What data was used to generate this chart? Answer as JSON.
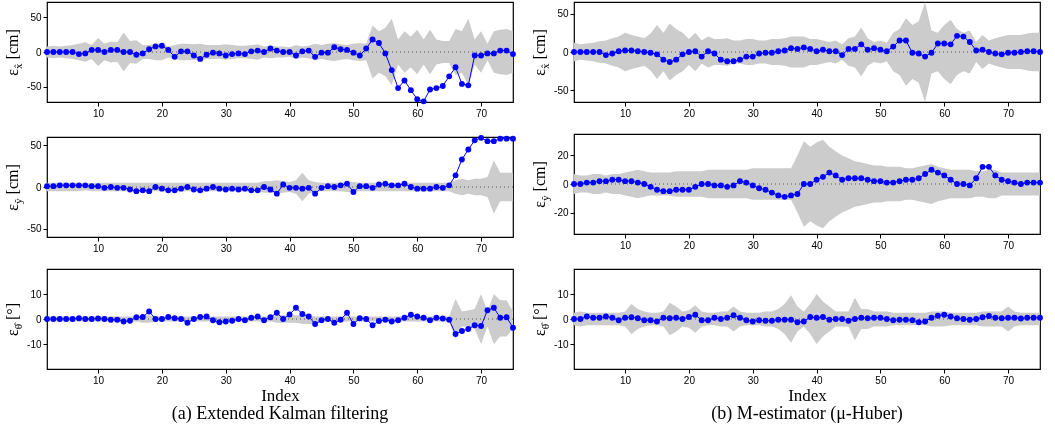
{
  "chart_data": [
    {
      "type": "line",
      "ylabel": "ε$_{x̂}$ [cm]",
      "x": [
        2,
        3,
        4,
        5,
        6,
        7,
        8,
        9,
        10,
        11,
        12,
        13,
        14,
        15,
        16,
        17,
        18,
        19,
        20,
        21,
        22,
        23,
        24,
        25,
        26,
        27,
        28,
        29,
        30,
        31,
        32,
        33,
        34,
        35,
        36,
        37,
        38,
        39,
        40,
        41,
        42,
        43,
        44,
        45,
        46,
        47,
        48,
        49,
        50,
        51,
        52,
        53,
        54,
        55,
        56,
        57,
        58,
        59,
        60,
        61,
        62,
        63,
        64,
        65,
        66,
        67,
        68,
        69,
        70,
        71,
        72,
        73,
        74,
        75
      ],
      "xlim": [
        2,
        75
      ],
      "xticks": [
        10,
        20,
        30,
        40,
        50,
        60,
        70
      ],
      "ylim": [
        -72,
        72
      ],
      "yticks": [
        -50,
        0,
        50
      ],
      "marker": "circle",
      "line_style": "solid",
      "ref_lines": [
        {
          "axis": "y",
          "value": 0,
          "color": "#555555",
          "line_style": "dotted"
        }
      ],
      "series": [
        {
          "color": "#0000ff",
          "values": [
            0,
            0,
            0,
            0,
            0,
            -3,
            -2,
            3,
            3,
            0,
            3,
            3,
            0,
            0,
            -4,
            -2,
            4,
            8,
            9,
            3,
            -7,
            1,
            1,
            -5,
            -10,
            -4,
            -1,
            -2,
            -5,
            -3,
            -2,
            -3,
            1,
            2,
            0,
            5,
            2,
            0,
            0,
            -5,
            1,
            2,
            -7,
            -1,
            -1,
            7,
            4,
            3,
            -1,
            -5,
            5,
            18,
            13,
            -2,
            -26,
            -52,
            -41,
            -55,
            -68,
            -71,
            -54,
            -52,
            -49,
            -35,
            -22,
            -46,
            -48,
            -5,
            -5,
            -2,
            -2,
            2,
            2,
            -3
          ],
          "upper": [
            8,
            9,
            8,
            9,
            10,
            12,
            14,
            10,
            20,
            12,
            15,
            14,
            28,
            16,
            17,
            10,
            10,
            12,
            12,
            8,
            10,
            12,
            12,
            11,
            12,
            10,
            10,
            10,
            11,
            10,
            9,
            9,
            10,
            11,
            8,
            9,
            8,
            8,
            7,
            10,
            8,
            9,
            12,
            10,
            12,
            13,
            11,
            10,
            12,
            13,
            12,
            38,
            30,
            35,
            48,
            18,
            30,
            22,
            32,
            18,
            32,
            18,
            16,
            16,
            33,
            30,
            48,
            18,
            30,
            12,
            30,
            32,
            33,
            30
          ],
          "lower": [
            -8,
            -9,
            -8,
            -9,
            -10,
            -12,
            -14,
            -10,
            -20,
            -12,
            -15,
            -14,
            -28,
            -16,
            -17,
            -10,
            -10,
            -12,
            -12,
            -8,
            -10,
            -12,
            -12,
            -11,
            -12,
            -10,
            -10,
            -10,
            -11,
            -10,
            -9,
            -9,
            -10,
            -11,
            -8,
            -9,
            -8,
            -8,
            -7,
            -10,
            -8,
            -9,
            -12,
            -10,
            -12,
            -13,
            -11,
            -10,
            -12,
            -13,
            -12,
            -38,
            -30,
            -35,
            -48,
            -18,
            -30,
            -22,
            -32,
            -18,
            -32,
            -18,
            -16,
            -16,
            -33,
            -30,
            -48,
            -18,
            -30,
            -12,
            -30,
            -32,
            -33,
            -30
          ]
        }
      ]
    },
    {
      "type": "line",
      "ylabel": "ε$_{ŷ}$ [cm]",
      "x": [
        2,
        3,
        4,
        5,
        6,
        7,
        8,
        9,
        10,
        11,
        12,
        13,
        14,
        15,
        16,
        17,
        18,
        19,
        20,
        21,
        22,
        23,
        24,
        25,
        26,
        27,
        28,
        29,
        30,
        31,
        32,
        33,
        34,
        35,
        36,
        37,
        38,
        39,
        40,
        41,
        42,
        43,
        44,
        45,
        46,
        47,
        48,
        49,
        50,
        51,
        52,
        53,
        54,
        55,
        56,
        57,
        58,
        59,
        60,
        61,
        62,
        63,
        64,
        65,
        66,
        67,
        68,
        69,
        70,
        71,
        72,
        73,
        74,
        75
      ],
      "xlim": [
        2,
        75
      ],
      "xticks": [
        10,
        20,
        30,
        40,
        50,
        60,
        70
      ],
      "ylim": [
        -60,
        60
      ],
      "yticks": [
        -50,
        0,
        50
      ],
      "marker": "circle",
      "line_style": "solid",
      "ref_lines": [
        {
          "axis": "y",
          "value": 0,
          "color": "#555555",
          "line_style": "dotted"
        }
      ],
      "series": [
        {
          "color": "#0000ff",
          "values": [
            1,
            1,
            2,
            2,
            2,
            2,
            2,
            1,
            1,
            -1,
            0,
            -1,
            -1,
            -3,
            -5,
            -4,
            -5,
            0,
            -2,
            -4,
            -4,
            -2,
            0,
            -3,
            -4,
            -2,
            0,
            -2,
            -3,
            -2,
            -3,
            -2,
            -4,
            -4,
            0,
            -3,
            -8,
            3,
            -1,
            -1,
            -2,
            -1,
            -8,
            -1,
            1,
            0,
            2,
            4,
            -6,
            1,
            1,
            -1,
            3,
            4,
            2,
            2,
            4,
            0,
            -2,
            -2,
            -2,
            0,
            -1,
            2,
            14,
            33,
            45,
            56,
            59,
            55,
            55,
            58,
            58,
            58
          ],
          "upper": [
            5,
            5,
            5,
            5,
            5,
            5,
            4,
            5,
            5,
            5,
            5,
            5,
            5,
            5,
            5,
            5,
            5,
            5,
            5,
            5,
            5,
            5,
            5,
            5,
            5,
            5,
            5,
            5,
            5,
            5,
            5,
            5,
            5,
            5,
            7,
            7,
            8,
            7,
            6,
            8,
            17,
            8,
            6,
            5,
            5,
            5,
            5,
            6,
            6,
            5,
            5,
            5,
            5,
            5,
            5,
            5,
            5,
            5,
            5,
            5,
            5,
            5,
            5,
            5,
            8,
            10,
            8,
            10,
            10,
            12,
            32,
            17,
            17,
            17
          ],
          "lower": [
            -5,
            -5,
            -5,
            -5,
            -5,
            -5,
            -4,
            -5,
            -5,
            -5,
            -5,
            -5,
            -5,
            -5,
            -5,
            -5,
            -5,
            -5,
            -5,
            -5,
            -5,
            -5,
            -5,
            -5,
            -5,
            -5,
            -5,
            -5,
            -5,
            -5,
            -5,
            -5,
            -5,
            -5,
            -7,
            -7,
            -8,
            -7,
            -6,
            -8,
            -17,
            -8,
            -6,
            -5,
            -5,
            -5,
            -5,
            -6,
            -6,
            -5,
            -5,
            -5,
            -5,
            -5,
            -5,
            -5,
            -5,
            -5,
            -5,
            -5,
            -5,
            -5,
            -5,
            -5,
            -8,
            -10,
            -8,
            -10,
            -10,
            -12,
            -32,
            -17,
            -17,
            -17
          ]
        }
      ]
    },
    {
      "type": "line",
      "ylabel": "ε$_{θ̂}$ [°]",
      "xlabel": "Index",
      "annotations": [
        "(a) Extended Kalman filtering"
      ],
      "x": [
        2,
        3,
        4,
        5,
        6,
        7,
        8,
        9,
        10,
        11,
        12,
        13,
        14,
        15,
        16,
        17,
        18,
        19,
        20,
        21,
        22,
        23,
        24,
        25,
        26,
        27,
        28,
        29,
        30,
        31,
        32,
        33,
        34,
        35,
        36,
        37,
        38,
        39,
        40,
        41,
        42,
        43,
        44,
        45,
        46,
        47,
        48,
        49,
        50,
        51,
        52,
        53,
        54,
        55,
        56,
        57,
        58,
        59,
        60,
        61,
        62,
        63,
        64,
        65,
        66,
        67,
        68,
        69,
        70,
        71,
        72,
        73,
        74,
        75
      ],
      "xlim": [
        2,
        75
      ],
      "xticks": [
        10,
        20,
        30,
        40,
        50,
        60,
        70
      ],
      "ylim": [
        -20,
        20
      ],
      "yticks": [
        -10,
        0,
        10
      ],
      "marker": "circle",
      "line_style": "solid",
      "ref_lines": [
        {
          "axis": "y",
          "value": 0,
          "color": "#555555",
          "line_style": "dotted"
        }
      ],
      "series": [
        {
          "color": "#0000ff",
          "values": [
            0,
            0,
            0,
            0,
            0,
            0.3,
            0,
            0,
            0.2,
            0,
            -0.3,
            -0.3,
            -1,
            -0.7,
            0.7,
            0.8,
            3,
            0,
            0,
            0.8,
            0.3,
            0,
            -1.5,
            0,
            0.8,
            1,
            -0.5,
            -1.3,
            -1,
            -0.7,
            0,
            -0.5,
            0.5,
            1,
            -0.5,
            0.7,
            2.5,
            0,
            1.8,
            4.5,
            2,
            1,
            -2,
            -0.5,
            0,
            -1.5,
            -0.3,
            2.5,
            -2,
            0.3,
            0,
            -2.5,
            -0.8,
            -0.3,
            -1,
            -0.5,
            0.5,
            1.7,
            1,
            0.5,
            -0.5,
            0.5,
            0.2,
            -0.3,
            -6,
            -4.8,
            -4,
            -2.5,
            -2.8,
            3.5,
            4.5,
            0.5,
            0.7,
            -3.5
          ],
          "upper": [
            1,
            1,
            1,
            1,
            1,
            1,
            1,
            1,
            1,
            1,
            1,
            1,
            1,
            1,
            1,
            1.5,
            1.5,
            1,
            1,
            1,
            1,
            1,
            1,
            1,
            1,
            1,
            1,
            1,
            1,
            1,
            1,
            1,
            1,
            1,
            1,
            1,
            1.5,
            1.5,
            1.5,
            1.5,
            1.5,
            1.5,
            1,
            1,
            1,
            1,
            1,
            1,
            1,
            1,
            1,
            1,
            1,
            1,
            1,
            1,
            1,
            1,
            1,
            1,
            1,
            1,
            1,
            1,
            8,
            3,
            3.5,
            4,
            10,
            3,
            10,
            7.5,
            7.5,
            3
          ],
          "lower": [
            -1,
            -1,
            -1,
            -1,
            -1,
            -1,
            -1,
            -1,
            -1,
            -1,
            -1,
            -1,
            -1,
            -1,
            -1,
            -1.5,
            -1.5,
            -1,
            -1,
            -1,
            -1,
            -1,
            -1,
            -1,
            -1,
            -1,
            -1,
            -1,
            -1,
            -1,
            -1,
            -1,
            -1,
            -1,
            -1,
            -1,
            -1.5,
            -1.5,
            -1.5,
            -1.5,
            -2,
            -2,
            -2,
            -1,
            -1,
            -1,
            -1,
            -1,
            -1,
            -1,
            -1,
            -1,
            -1,
            -1,
            -1,
            -1,
            -1,
            -1,
            -1,
            -1,
            -1,
            -1,
            -1,
            -1,
            -8,
            -3,
            -3,
            -4,
            -10,
            -3,
            -10,
            -7,
            -7,
            -4
          ]
        }
      ]
    },
    {
      "type": "line",
      "ylabel": "ε$_{x̂}$ [cm]",
      "x": [
        2,
        3,
        4,
        5,
        6,
        7,
        8,
        9,
        10,
        11,
        12,
        13,
        14,
        15,
        16,
        17,
        18,
        19,
        20,
        21,
        22,
        23,
        24,
        25,
        26,
        27,
        28,
        29,
        30,
        31,
        32,
        33,
        34,
        35,
        36,
        37,
        38,
        39,
        40,
        41,
        42,
        43,
        44,
        45,
        46,
        47,
        48,
        49,
        50,
        51,
        52,
        53,
        54,
        55,
        56,
        57,
        58,
        59,
        60,
        61,
        62,
        63,
        64,
        65,
        66,
        67,
        68,
        69,
        70,
        71,
        72,
        73,
        74,
        75
      ],
      "xlim": [
        2,
        75
      ],
      "xticks": [
        10,
        20,
        30,
        40,
        50,
        60,
        70
      ],
      "ylim": [
        -65,
        65
      ],
      "yticks": [
        -50,
        0,
        50
      ],
      "marker": "circle",
      "line_style": "solid",
      "ref_lines": [
        {
          "axis": "y",
          "value": 0,
          "color": "#555555",
          "line_style": "dotted"
        }
      ],
      "series": [
        {
          "color": "#0000ff",
          "values": [
            0,
            0,
            0,
            0,
            0,
            -4,
            -2,
            1,
            2,
            2,
            1,
            0,
            -1,
            -3,
            -10,
            -13,
            -10,
            -3,
            0,
            1,
            -6,
            1,
            -2,
            -10,
            -12,
            -12,
            -10,
            -6,
            -6,
            -2,
            -1,
            -1,
            1,
            2,
            5,
            4,
            6,
            4,
            1,
            3,
            1,
            1,
            -4,
            4,
            4,
            10,
            3,
            5,
            3,
            1,
            7,
            15,
            15,
            -1,
            -2,
            -6,
            -1,
            11,
            11,
            10,
            21,
            20,
            13,
            2,
            3,
            0,
            -2,
            -3,
            -1,
            -1,
            0,
            1,
            1,
            0
          ],
          "upper": [
            12,
            10,
            11,
            12,
            14,
            15,
            18,
            20,
            25,
            22,
            20,
            18,
            24,
            35,
            25,
            37,
            30,
            25,
            17,
            25,
            15,
            20,
            17,
            17,
            18,
            15,
            15,
            17,
            17,
            15,
            15,
            17,
            17,
            18,
            20,
            20,
            20,
            17,
            17,
            15,
            13,
            15,
            10,
            18,
            20,
            32,
            18,
            13,
            15,
            12,
            25,
            30,
            44,
            35,
            40,
            65,
            28,
            25,
            35,
            42,
            30,
            25,
            28,
            13,
            22,
            15,
            18,
            20,
            22,
            22,
            22,
            24,
            25,
            25
          ],
          "lower": [
            -12,
            -10,
            -11,
            -12,
            -14,
            -15,
            -18,
            -20,
            -25,
            -22,
            -20,
            -18,
            -24,
            -35,
            -25,
            -37,
            -30,
            -25,
            -17,
            -25,
            -15,
            -20,
            -17,
            -17,
            -18,
            -15,
            -15,
            -17,
            -17,
            -15,
            -15,
            -17,
            -17,
            -18,
            -20,
            -20,
            -20,
            -17,
            -17,
            -15,
            -13,
            -15,
            -10,
            -18,
            -20,
            -32,
            -18,
            -13,
            -15,
            -12,
            -25,
            -30,
            -44,
            -35,
            -40,
            -65,
            -28,
            -25,
            -35,
            -42,
            -30,
            -25,
            -28,
            -13,
            -22,
            -15,
            -18,
            -20,
            -22,
            -22,
            -22,
            -24,
            -25,
            -25
          ]
        }
      ]
    },
    {
      "type": "line",
      "ylabel": "ε$_{ŷ}$ [cm]",
      "x": [
        2,
        3,
        4,
        5,
        6,
        7,
        8,
        9,
        10,
        11,
        12,
        13,
        14,
        15,
        16,
        17,
        18,
        19,
        20,
        21,
        22,
        23,
        24,
        25,
        26,
        27,
        28,
        29,
        30,
        31,
        32,
        33,
        34,
        35,
        36,
        37,
        38,
        39,
        40,
        41,
        42,
        43,
        44,
        45,
        46,
        47,
        48,
        49,
        50,
        51,
        52,
        53,
        54,
        55,
        56,
        57,
        58,
        59,
        60,
        61,
        62,
        63,
        64,
        65,
        66,
        67,
        68,
        69,
        70,
        71,
        72,
        73,
        74,
        75
      ],
      "xlim": [
        2,
        75
      ],
      "xticks": [
        10,
        20,
        30,
        40,
        50,
        60,
        70
      ],
      "ylim": [
        -35,
        35
      ],
      "yticks": [
        -20,
        0,
        20
      ],
      "marker": "circle",
      "line_style": "solid",
      "ref_lines": [
        {
          "axis": "y",
          "value": 0,
          "color": "#555555",
          "line_style": "dotted"
        }
      ],
      "series": [
        {
          "color": "#0000ff",
          "values": [
            0,
            0,
            1,
            1,
            2,
            2,
            3,
            3,
            2,
            2,
            1,
            0,
            -2,
            -4,
            -5,
            -5,
            -4,
            -4,
            -4,
            -2,
            0,
            0,
            -1,
            -1,
            -2,
            -1,
            2,
            1,
            -1,
            -3,
            -4,
            -6,
            -8,
            -9,
            -8,
            -7,
            0,
            0,
            3,
            5,
            8,
            6,
            3,
            4,
            4,
            4,
            3,
            2,
            2,
            1,
            1,
            2,
            3,
            3,
            4,
            7,
            10,
            8,
            6,
            3,
            0,
            0,
            -1,
            4,
            12,
            12,
            6,
            3,
            2,
            1,
            0,
            1,
            1,
            1
          ],
          "upper": [
            7,
            6,
            6,
            7,
            7,
            6,
            7,
            7,
            8,
            9,
            10,
            9,
            8,
            8,
            8,
            8,
            9,
            9,
            9,
            9,
            9,
            10,
            10,
            10,
            10,
            10,
            10,
            10,
            11,
            11,
            11,
            11,
            11,
            11,
            11,
            20,
            30,
            26,
            29,
            31,
            26,
            23,
            20,
            18,
            16,
            15,
            14,
            13,
            13,
            12,
            12,
            12,
            11,
            11,
            12,
            13,
            14,
            12,
            11,
            10,
            10,
            10,
            10,
            9,
            9,
            10,
            10,
            8,
            8,
            8,
            8,
            8,
            8,
            8
          ],
          "lower": [
            -7,
            -6,
            -6,
            -7,
            -7,
            -6,
            -7,
            -7,
            -8,
            -9,
            -10,
            -9,
            -8,
            -8,
            -8,
            -8,
            -9,
            -9,
            -9,
            -9,
            -9,
            -10,
            -10,
            -10,
            -10,
            -10,
            -10,
            -10,
            -11,
            -11,
            -11,
            -11,
            -11,
            -11,
            -11,
            -20,
            -30,
            -26,
            -29,
            -31,
            -26,
            -23,
            -20,
            -18,
            -16,
            -15,
            -14,
            -13,
            -13,
            -12,
            -12,
            -12,
            -11,
            -11,
            -12,
            -13,
            -14,
            -12,
            -11,
            -10,
            -10,
            -10,
            -10,
            -9,
            -9,
            -10,
            -10,
            -8,
            -8,
            -8,
            -8,
            -8,
            -8,
            -8
          ]
        }
      ]
    },
    {
      "type": "line",
      "ylabel": "ε$_{θ̂}$ [°]",
      "xlabel": "Index",
      "annotations": [
        "(b) M-estimator (μ-Huber)"
      ],
      "x": [
        2,
        3,
        4,
        5,
        6,
        7,
        8,
        9,
        10,
        11,
        12,
        13,
        14,
        15,
        16,
        17,
        18,
        19,
        20,
        21,
        22,
        23,
        24,
        25,
        26,
        27,
        28,
        29,
        30,
        31,
        32,
        33,
        34,
        35,
        36,
        37,
        38,
        39,
        40,
        41,
        42,
        43,
        44,
        45,
        46,
        47,
        48,
        49,
        50,
        51,
        52,
        53,
        54,
        55,
        56,
        57,
        58,
        59,
        60,
        61,
        62,
        63,
        64,
        65,
        66,
        67,
        68,
        69,
        70,
        71,
        72,
        73,
        74,
        75
      ],
      "xlim": [
        2,
        75
      ],
      "xticks": [
        10,
        20,
        30,
        40,
        50,
        60,
        70
      ],
      "ylim": [
        -20,
        20
      ],
      "yticks": [
        -10,
        0,
        10
      ],
      "marker": "circle",
      "line_style": "solid",
      "ref_lines": [
        {
          "axis": "y",
          "value": 0,
          "color": "#555555",
          "line_style": "dotted"
        }
      ],
      "series": [
        {
          "color": "#0000ff",
          "values": [
            0,
            0,
            1,
            0.5,
            0.5,
            1,
            0.5,
            -0.5,
            0.5,
            0.7,
            0.3,
            -0.5,
            -0.5,
            -1,
            0.5,
            0.3,
            0.5,
            0,
            0.8,
            1.7,
            -0.5,
            -0.5,
            0.5,
            0,
            0.5,
            1.5,
            0.5,
            -0.5,
            -1,
            -0.5,
            -0.7,
            -0.7,
            -0.3,
            -0.3,
            -0.3,
            -1.3,
            -1,
            0.8,
            0.5,
            0.8,
            -0.3,
            0,
            0,
            -0.7,
            0,
            0.5,
            0.3,
            0.5,
            0.5,
            0,
            -0.5,
            -0.3,
            -0.3,
            -0.5,
            -1.3,
            -1,
            0.5,
            1.3,
            1.7,
            1,
            0.3,
            0,
            -0.3,
            0,
            0.7,
            1.2,
            0.5,
            0.3,
            0.5,
            0.5,
            0.2,
            0.5,
            0.5,
            0.5
          ],
          "upper": [
            2.5,
            3,
            2.5,
            2.5,
            2.5,
            2.5,
            2.5,
            2.5,
            3,
            6,
            4,
            3,
            2.5,
            2.5,
            3,
            6.5,
            5,
            3,
            3.5,
            5.5,
            3,
            2.5,
            2.5,
            3,
            3,
            5,
            3,
            2.5,
            2.5,
            2.5,
            3,
            3,
            4,
            6,
            9.5,
            5,
            3,
            6,
            10,
            7,
            5,
            3,
            3,
            3,
            8.5,
            4,
            4,
            3,
            3,
            3,
            2.5,
            2.5,
            2.5,
            2.5,
            2.5,
            2.5,
            3,
            3,
            3,
            2.5,
            2.5,
            2.5,
            2.5,
            2.5,
            3,
            3,
            3,
            3,
            5,
            3,
            2.5,
            2.5,
            2.5,
            2.5
          ],
          "lower": [
            -2.5,
            -3,
            -2.5,
            -2.5,
            -2.5,
            -2.5,
            -2.5,
            -2.5,
            -3,
            -6,
            -4,
            -3,
            -2.5,
            -2.5,
            -3,
            -6.5,
            -5,
            -3,
            -3.5,
            -5.5,
            -3,
            -2.5,
            -2.5,
            -3,
            -3,
            -5,
            -3,
            -2.5,
            -2.5,
            -2.5,
            -3,
            -3,
            -4,
            -6,
            -9.5,
            -5,
            -3,
            -6,
            -10,
            -7,
            -5,
            -3,
            -3,
            -3,
            -8.5,
            -4,
            -4,
            -3,
            -3,
            -3,
            -2.5,
            -2.5,
            -2.5,
            -2.5,
            -2.5,
            -2.5,
            -3,
            -3,
            -3,
            -2.5,
            -2.5,
            -2.5,
            -2.5,
            -2.5,
            -3,
            -3,
            -3,
            -3,
            -5,
            -3,
            -2.5,
            -2.5,
            -2.5,
            -2.5
          ]
        }
      ]
    }
  ]
}
